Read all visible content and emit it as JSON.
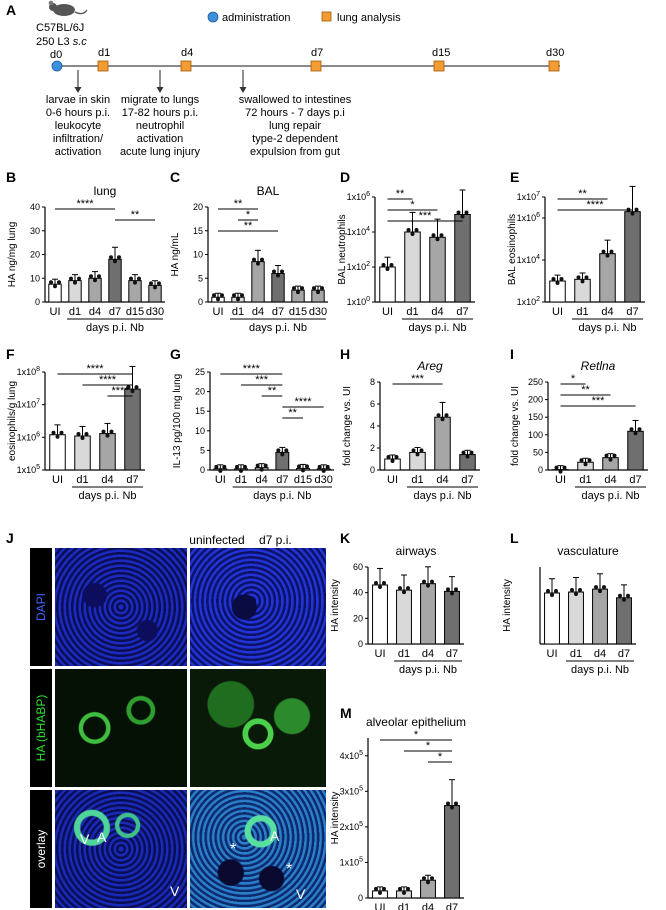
{
  "figure": {
    "panel_letters": [
      "A",
      "B",
      "C",
      "D",
      "E",
      "F",
      "G",
      "H",
      "I",
      "J",
      "K",
      "L",
      "M"
    ],
    "timeline": {
      "mouse_strain": "C57BL/6J",
      "dose": "250 L3",
      "route": "s.c",
      "legend": {
        "administration": "administration",
        "analysis": "lung analysis"
      },
      "days": [
        "d0",
        "d1",
        "d4",
        "d7",
        "d15",
        "d30"
      ],
      "notes": [
        [
          "larvae in skin",
          "0-6 hours p.i.",
          "leukocyte",
          "infiltration/",
          "activation"
        ],
        [
          "migrate to lungs",
          "17-82 hours p.i.",
          "neutrophil",
          "activation",
          "acute lung injury"
        ],
        [
          "swallowed to intestines",
          "72 hours - 7 days p.i",
          "lung repair",
          "type-2 dependent",
          "expulsion from gut"
        ]
      ]
    },
    "x_group_label": "days p.i. Nb",
    "stars": {
      "s1": "*",
      "s2": "**",
      "s3": "***",
      "s4": "****"
    },
    "microscopy": {
      "col_uninfected": "uninfected",
      "col_d7": "d7 p.i.",
      "row_dapi": "DAPI",
      "row_ha": "HA (bHABP)",
      "row_overlay": "overlay",
      "marks": {
        "A": "A",
        "V": "V",
        "star": "*"
      }
    }
  },
  "chart_data": [
    {
      "panel": "B",
      "type": "bar",
      "title": "lung",
      "ylabel": "HA ng/mg lung",
      "ylim": [
        0,
        40
      ],
      "yticks": [
        "0",
        "10",
        "20",
        "30",
        "40"
      ],
      "categories": [
        "UI",
        "d1",
        "d4",
        "d7",
        "d15",
        "d30"
      ],
      "values": [
        7.5,
        9,
        10,
        18,
        9,
        7
      ],
      "significance": [
        [
          "UI",
          "d7",
          "****"
        ],
        [
          "d7",
          "d30",
          "**"
        ]
      ]
    },
    {
      "panel": "C",
      "type": "bar",
      "title": "BAL",
      "ylabel": "HA ng/mL",
      "ylim": [
        0,
        20
      ],
      "yticks": [
        "0",
        "5",
        "10",
        "15",
        "20"
      ],
      "categories": [
        "UI",
        "d1",
        "d4",
        "d7",
        "d15",
        "d30"
      ],
      "values": [
        1,
        1,
        8.5,
        6,
        2.5,
        2.5
      ],
      "significance": [
        [
          "UI",
          "d4",
          "**"
        ],
        [
          "d1",
          "d4",
          "*"
        ],
        [
          "UI",
          "d7",
          "**"
        ]
      ]
    },
    {
      "panel": "D",
      "type": "bar",
      "ylabel": "BAL neutrophils",
      "scale": "log",
      "ylim": [
        "1x10^0",
        "1x10^6"
      ],
      "yticks": [
        "1x10^0",
        "1x10^2",
        "1x10^4",
        "1x10^6"
      ],
      "categories": [
        "UI",
        "d1",
        "d4",
        "d7"
      ],
      "values": [
        "1x10^2",
        "1x10^4",
        "5x10^3",
        "1x10^5"
      ],
      "significance": [
        [
          "UI",
          "d1",
          "**"
        ],
        [
          "UI",
          "d4",
          "*"
        ],
        [
          "UI",
          "d7",
          "***"
        ]
      ]
    },
    {
      "panel": "E",
      "type": "bar",
      "ylabel": "BAL eosinophils",
      "scale": "log",
      "ylim": [
        "1x10^2",
        "1x10^7"
      ],
      "yticks": [
        "1x10^2",
        "1x10^4",
        "1x10^6",
        "1x10^7"
      ],
      "categories": [
        "UI",
        "d1",
        "d4",
        "d7"
      ],
      "values": [
        "1x10^3",
        "1.2x10^3",
        "2x10^4",
        "2x10^6"
      ],
      "significance": [
        [
          "UI",
          "d4",
          "**"
        ],
        [
          "UI",
          "d7",
          "****"
        ]
      ]
    },
    {
      "panel": "F",
      "type": "bar",
      "ylabel": "eosinophils/g lung",
      "scale": "log",
      "ylim": [
        "1x10^5",
        "1x10^8"
      ],
      "yticks": [
        "1x10^5",
        "1x10^6",
        "1x10^7",
        "1x10^8"
      ],
      "categories": [
        "UI",
        "d1",
        "d4",
        "d7"
      ],
      "values": [
        "1.2x10^6",
        "1.1x10^6",
        "1.3x10^6",
        "3x10^7"
      ],
      "significance": [
        [
          "UI",
          "d7",
          "****"
        ],
        [
          "d1",
          "d7",
          "****"
        ],
        [
          "d4",
          "d7",
          "****"
        ]
      ]
    },
    {
      "panel": "G",
      "type": "bar",
      "ylabel": "IL-13 pg/100 mg lung",
      "ylim": [
        0,
        25
      ],
      "yticks": [
        "0",
        "5",
        "10",
        "15",
        "20",
        "25"
      ],
      "categories": [
        "UI",
        "d1",
        "d4",
        "d7",
        "d15",
        "d30"
      ],
      "values": [
        0.3,
        0.3,
        0.6,
        4.5,
        0.4,
        0.3
      ],
      "significance": [
        [
          "UI",
          "d7",
          "****"
        ],
        [
          "d1",
          "d7",
          "***"
        ],
        [
          "d4",
          "d7",
          "**"
        ],
        [
          "d7",
          "d30",
          "****"
        ],
        [
          "d7",
          "d15",
          "**"
        ]
      ]
    },
    {
      "panel": "H",
      "type": "bar",
      "title": "Areg",
      "ylabel": "fold change vs. UI",
      "ylim": [
        0,
        8
      ],
      "yticks": [
        "0",
        "2",
        "4",
        "6",
        "8"
      ],
      "categories": [
        "UI",
        "d1",
        "d4",
        "d7"
      ],
      "values": [
        1,
        1.6,
        4.8,
        1.4
      ],
      "significance": [
        [
          "UI",
          "d4",
          "***"
        ]
      ]
    },
    {
      "panel": "I",
      "type": "bar",
      "title": "Retlna",
      "ylabel": "fold change vs. UI",
      "ylim": [
        0,
        250
      ],
      "yticks": [
        "0",
        "50",
        "100",
        "150",
        "200",
        "250"
      ],
      "categories": [
        "UI",
        "d1",
        "d4",
        "d7"
      ],
      "values": [
        1,
        22,
        35,
        110
      ],
      "significance": [
        [
          "UI",
          "d1",
          "*"
        ],
        [
          "UI",
          "d4",
          "**"
        ],
        [
          "UI",
          "d7",
          "***"
        ]
      ]
    },
    {
      "panel": "K",
      "type": "bar",
      "title": "airways",
      "ylabel": "HA intensity",
      "ylim": [
        0,
        60
      ],
      "yticks": [
        "0",
        "20",
        "40",
        "60"
      ],
      "categories": [
        "UI",
        "d1",
        "d4",
        "d7"
      ],
      "values": [
        46,
        42,
        47,
        41
      ],
      "significance": []
    },
    {
      "panel": "L",
      "type": "bar",
      "title": "vasculature",
      "ylabel": "HA intensity",
      "ylim": [
        0,
        80
      ],
      "yticks": [],
      "categories": [
        "UI",
        "d1",
        "d4",
        "d7"
      ],
      "values": [
        53,
        54,
        57,
        48
      ],
      "significance": []
    },
    {
      "panel": "M",
      "type": "bar",
      "title": "alveolar epithelium",
      "ylabel": "HA intensity",
      "ylim": [
        0,
        4.5
      ],
      "yticks": [
        "0",
        "1x10^5",
        "2x10^5",
        "3x10^5",
        "4x10^5"
      ],
      "categories": [
        "UI",
        "d1",
        "d4",
        "d7"
      ],
      "values": [
        0.2,
        0.2,
        0.5,
        2.6
      ],
      "significance": [
        [
          "UI",
          "d7",
          "*"
        ],
        [
          "d1",
          "d7",
          "*"
        ],
        [
          "d4",
          "d7",
          "*"
        ]
      ]
    }
  ]
}
